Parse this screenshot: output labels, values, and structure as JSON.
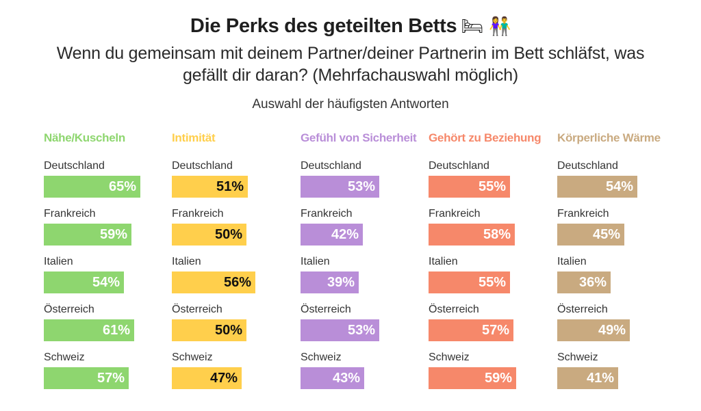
{
  "header": {
    "title": "Die Perks des geteilten Betts",
    "title_emoji": "🛏 👫",
    "subtitle_line1": "Wenn du gemeinsam mit deinem Partner/deiner Partnerin im Bett schläfst, was",
    "subtitle_line2": "gefällt dir daran? (Mehrfachauswahl möglich)",
    "note": "Auswahl der häufigsten Antworten"
  },
  "chart_data": {
    "type": "bar",
    "orientation": "horizontal",
    "title": "Die Perks des geteilten Betts",
    "subtitle": "Wenn du gemeinsam mit deinem Partner/deiner Partnerin im Bett schläfst, was gefällt dir daran? (Mehrfachauswahl möglich)",
    "note": "Auswahl der häufigsten Antworten",
    "unit": "%",
    "categories": [
      "Deutschland",
      "Frankreich",
      "Italien",
      "Österreich",
      "Schweiz"
    ],
    "series": [
      {
        "name": "Nähe/Kuscheln",
        "color": "#8ed66f",
        "label_color": "#ffffff",
        "values": [
          65,
          59,
          54,
          61,
          57
        ]
      },
      {
        "name": "Intimität",
        "color": "#ffcf4c",
        "label_color": "#111111",
        "values": [
          51,
          50,
          56,
          50,
          47
        ]
      },
      {
        "name": "Gefühl von Sicherheit",
        "color": "#b98ed8",
        "label_color": "#ffffff",
        "values": [
          53,
          42,
          39,
          53,
          43
        ]
      },
      {
        "name": "Gehört zu Beziehung",
        "color": "#f6886a",
        "label_color": "#ffffff",
        "values": [
          55,
          58,
          55,
          57,
          59
        ]
      },
      {
        "name": "Körperliche Wärme",
        "color": "#c9aa80",
        "label_color": "#ffffff",
        "values": [
          54,
          45,
          36,
          49,
          41
        ]
      }
    ]
  }
}
